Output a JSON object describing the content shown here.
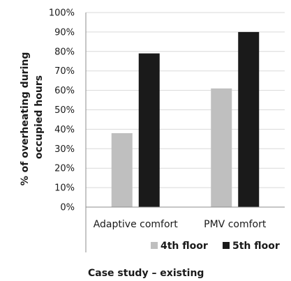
{
  "chart_data": {
    "type": "bar",
    "categories": [
      "Adaptive comfort",
      "PMV comfort"
    ],
    "series": [
      {
        "name": "4th floor",
        "values": [
          38,
          61
        ],
        "color": "#bfbfbf"
      },
      {
        "name": "5th floor",
        "values": [
          79,
          90
        ],
        "color": "#1a1a1a"
      }
    ],
    "ylabel_lines": [
      "% of overheating during",
      "occupied hours"
    ],
    "yticks": [
      "0%",
      "10%",
      "20%",
      "30%",
      "40%",
      "50%",
      "60%",
      "70%",
      "80%",
      "90%",
      "100%"
    ],
    "ylim": [
      0,
      100
    ],
    "grid": true,
    "legend_position": "bottom-right",
    "title": "Case study – existing"
  }
}
